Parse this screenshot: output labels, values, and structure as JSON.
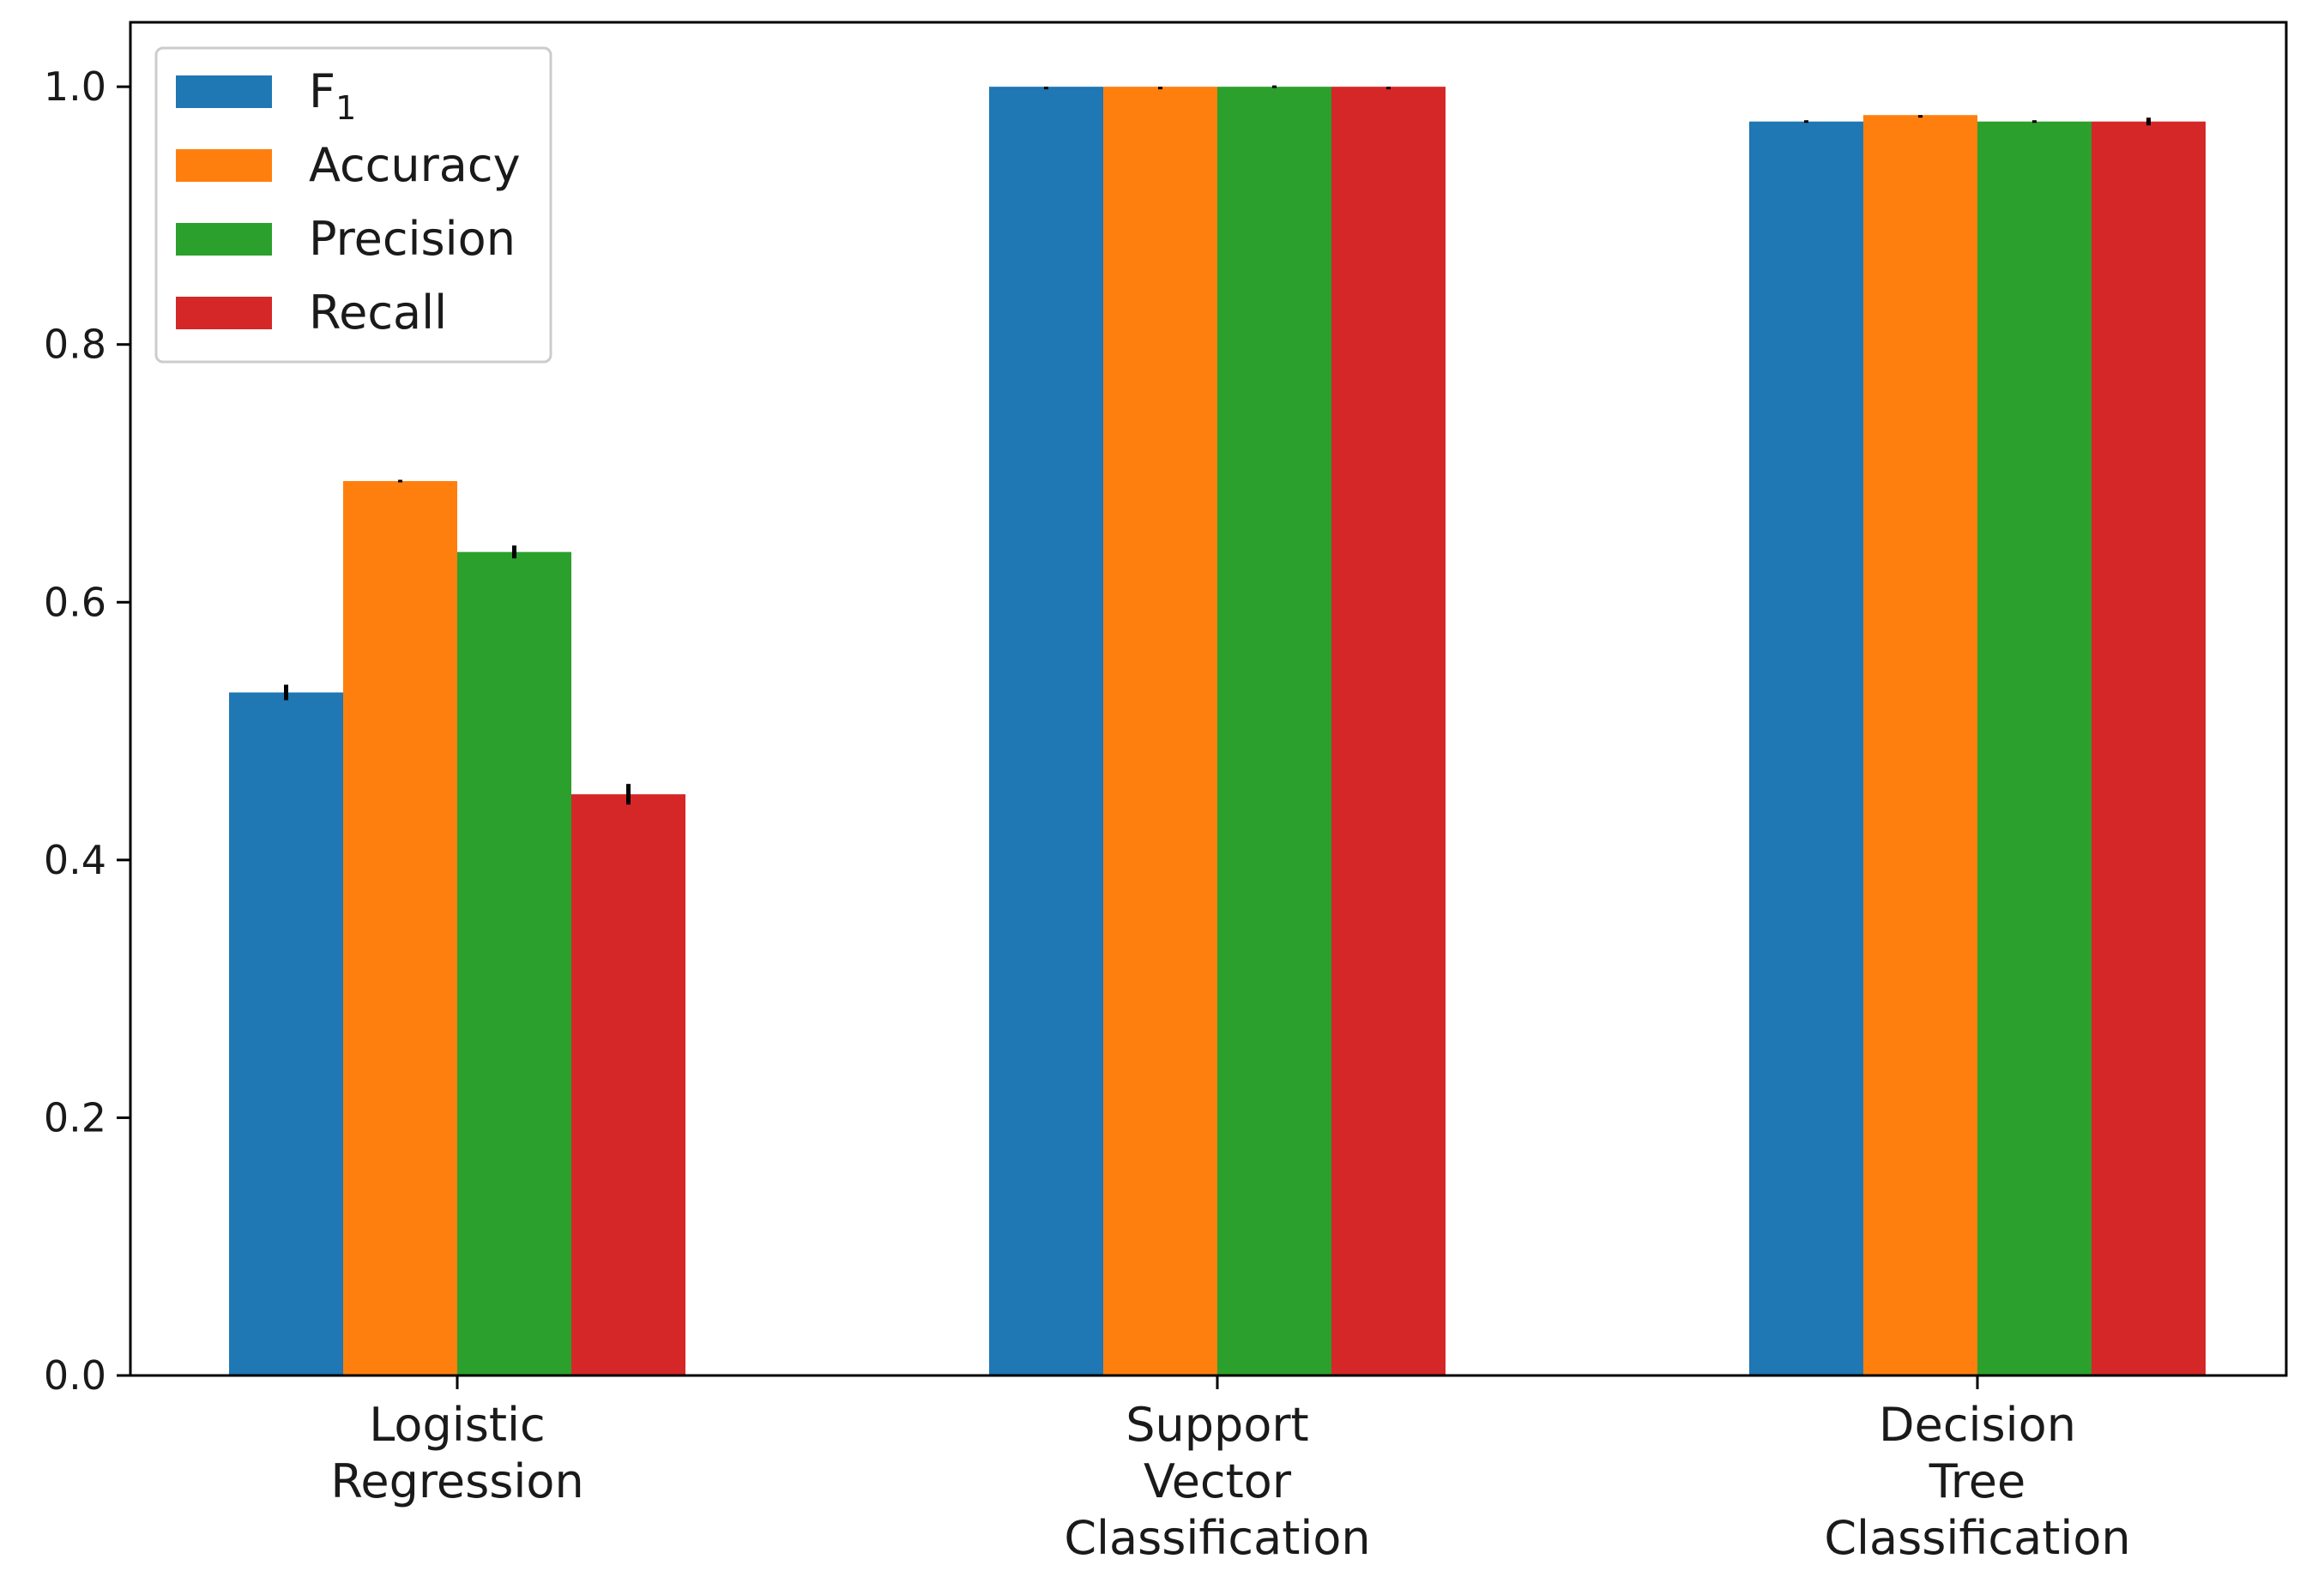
{
  "chart_data": {
    "type": "bar",
    "title": "",
    "xlabel": "",
    "ylabel": "",
    "ylim": [
      0,
      1.05
    ],
    "yticks": [
      "0.0",
      "0.2",
      "0.4",
      "0.6",
      "0.8",
      "1.0"
    ],
    "ytick_values": [
      0.0,
      0.2,
      0.4,
      0.6,
      0.8,
      1.0
    ],
    "grid": false,
    "legend_position": "top-left",
    "categories": [
      [
        "Logistic",
        "Regression"
      ],
      [
        "Support",
        "Vector",
        "Classification"
      ],
      [
        "Decision",
        "Tree",
        "Classification"
      ]
    ],
    "series": [
      {
        "name": "F",
        "subscript": "1",
        "color": "#1f77b4",
        "values": [
          0.53,
          1.0,
          0.973
        ],
        "errors": [
          0.006,
          0.0,
          0.001
        ]
      },
      {
        "name": "Accuracy",
        "subscript": "",
        "color": "#ff7f0e",
        "values": [
          0.694,
          1.0,
          0.978
        ],
        "errors": [
          0.001,
          0.0,
          0.0
        ]
      },
      {
        "name": "Precision",
        "subscript": "",
        "color": "#2ca02c",
        "values": [
          0.639,
          1.0,
          0.973
        ],
        "errors": [
          0.005,
          0.001,
          0.001
        ]
      },
      {
        "name": "Recall",
        "subscript": "",
        "color": "#d62728",
        "values": [
          0.451,
          1.0,
          0.973
        ],
        "errors": [
          0.008,
          0.0,
          0.003
        ]
      }
    ]
  }
}
